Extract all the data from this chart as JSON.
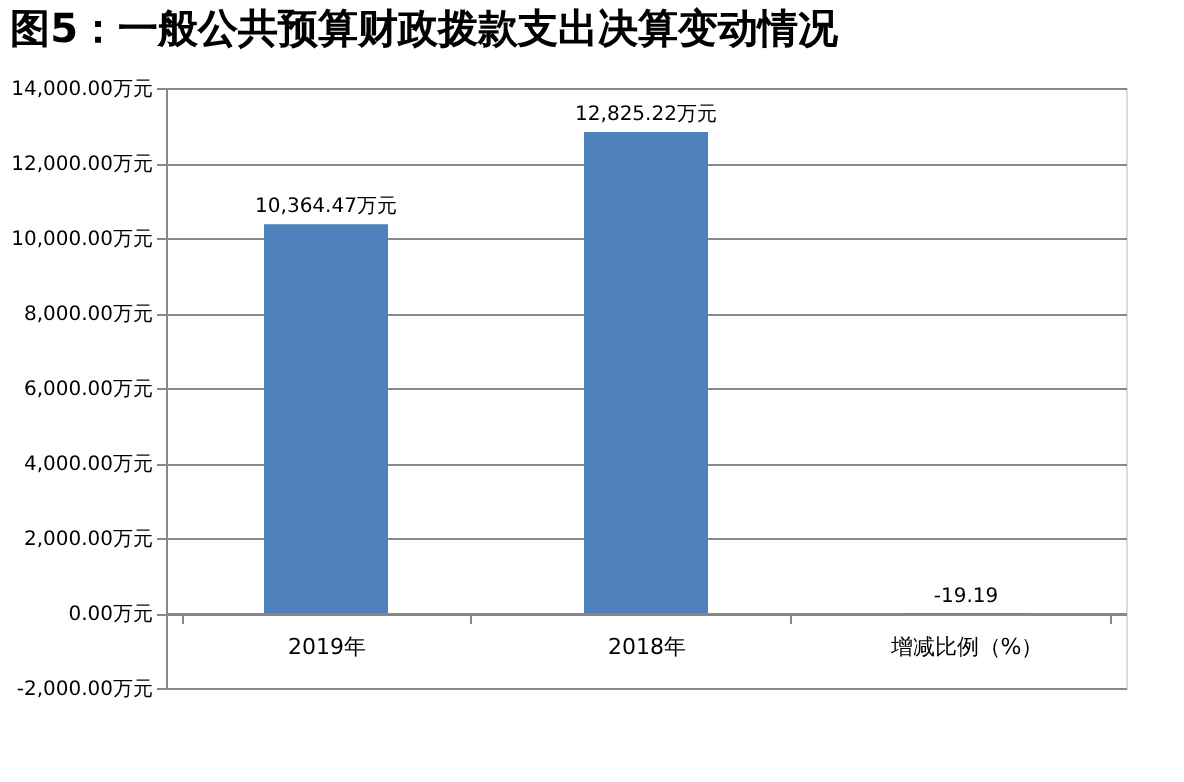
{
  "chart_data": {
    "type": "bar",
    "title": "图5：一般公共预算财政拨款支出决算变动情况",
    "categories": [
      "2019年",
      "2018年",
      "增减比例（%）"
    ],
    "values": [
      10364.47,
      12825.22,
      -19.19
    ],
    "value_labels": [
      "10,364.47万元",
      "12,825.22万元",
      "-19.19"
    ],
    "color": "#4f81bd",
    "ylim": [
      -2000,
      14000
    ],
    "yticks": [
      {
        "value": -2000,
        "label": "-2,000.00万元"
      },
      {
        "value": 0,
        "label": "0.00万元"
      },
      {
        "value": 2000,
        "label": "2,000.00万元"
      },
      {
        "value": 4000,
        "label": "4,000.00万元"
      },
      {
        "value": 6000,
        "label": "6,000.00万元"
      },
      {
        "value": 8000,
        "label": "8,000.00万元"
      },
      {
        "value": 10000,
        "label": "10,000.00万元"
      },
      {
        "value": 12000,
        "label": "12,000.00万元"
      },
      {
        "value": 14000,
        "label": "14,000.00万元"
      }
    ],
    "grid": "y"
  }
}
